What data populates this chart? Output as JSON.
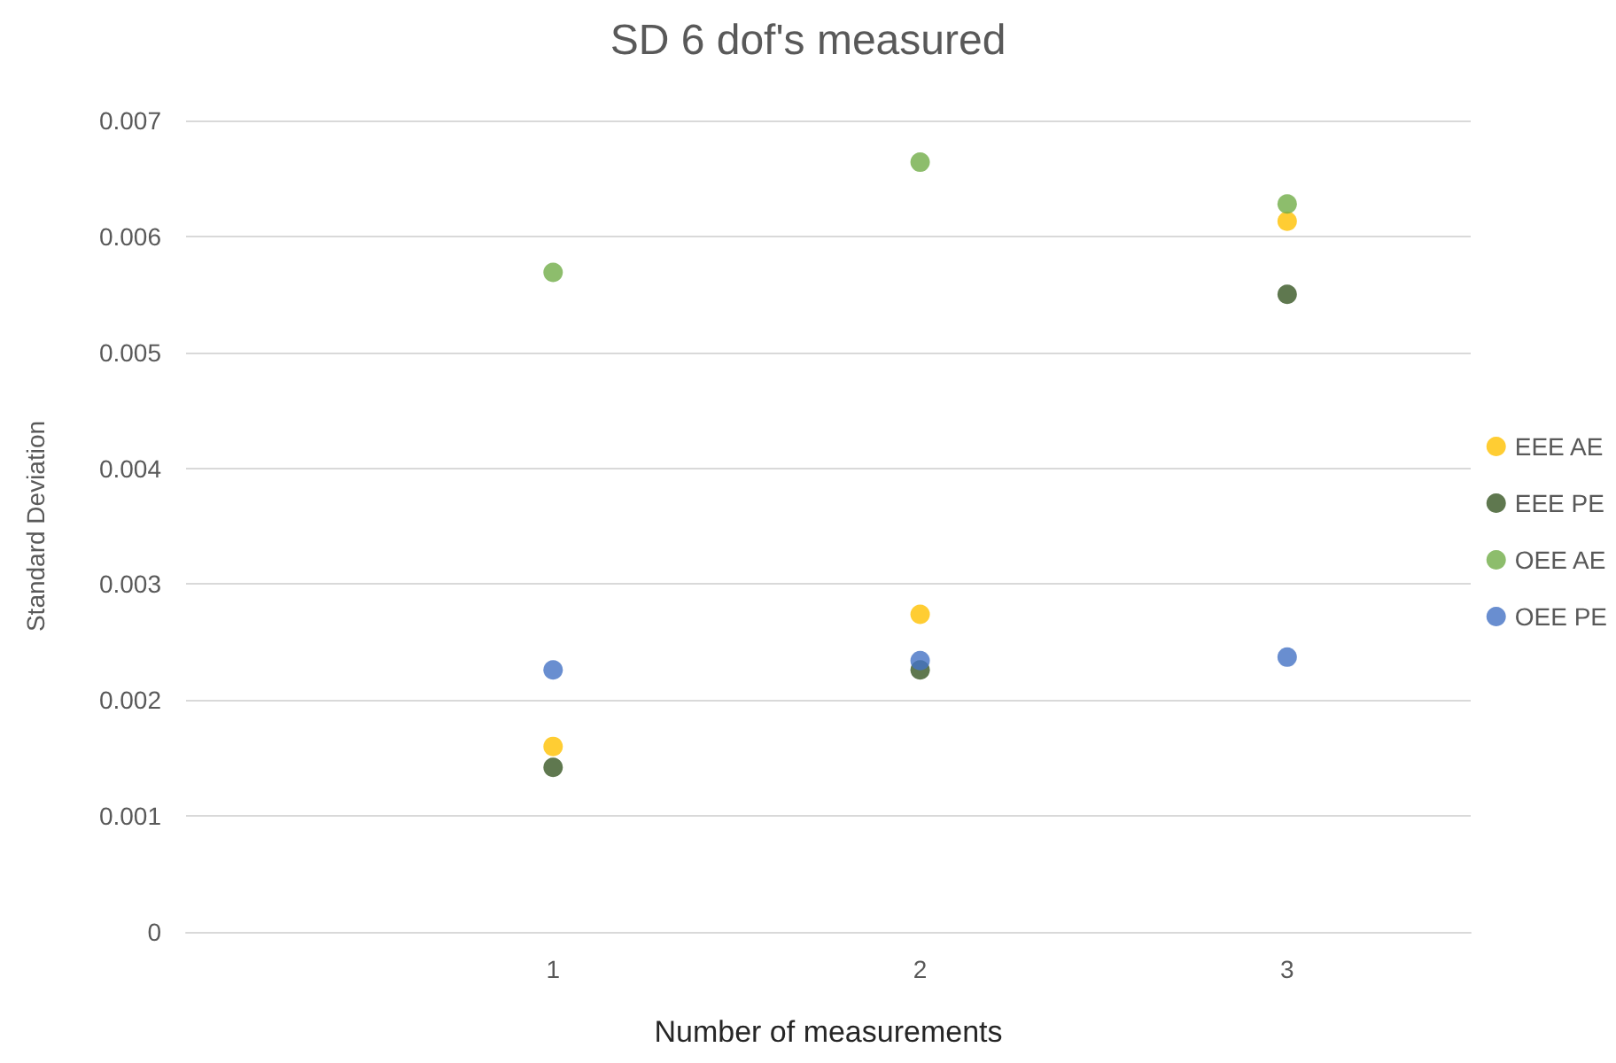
{
  "chart_data": {
    "type": "scatter",
    "title": "SD 6 dof's measured",
    "xlabel": "Number of measurements",
    "ylabel": "Standard Deviation",
    "x": [
      1,
      2,
      3
    ],
    "series": [
      {
        "name": "EEE AE",
        "color": "#ffc000",
        "values": [
          0.0016,
          0.00274,
          0.00613
        ]
      },
      {
        "name": "EEE PE",
        "color": "#375623",
        "values": [
          0.00142,
          0.00226,
          0.0055
        ]
      },
      {
        "name": "OEE AE",
        "color": "#70ad47",
        "values": [
          0.00569,
          0.00664,
          0.00628
        ]
      },
      {
        "name": "OEE PE",
        "color": "#4472c4",
        "values": [
          0.00226,
          0.00234,
          0.00237
        ]
      }
    ],
    "xlim": [
      0,
      3.5
    ],
    "xticks": [
      1,
      2,
      3
    ],
    "ylim": [
      0,
      0.007
    ],
    "yticks": [
      0,
      0.001,
      0.002,
      0.003,
      0.004,
      0.005,
      0.006,
      0.007
    ],
    "grid": "y",
    "legend": "right",
    "marker": "circle"
  }
}
